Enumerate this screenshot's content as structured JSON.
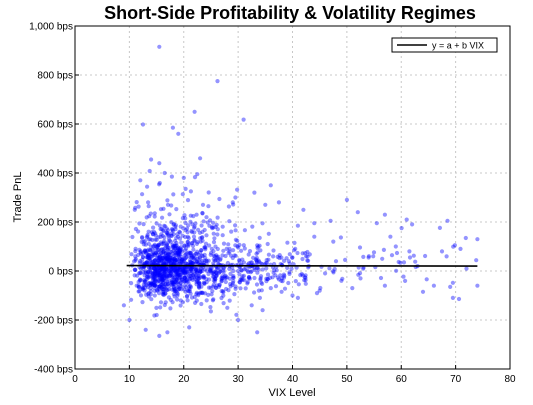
{
  "chart_data": {
    "type": "scatter",
    "title": "Short-Side Profitability & Volatility Regimes",
    "xlabel": "VIX Level",
    "ylabel": "Trade PnL",
    "xlim": [
      0,
      80
    ],
    "ylim": [
      -400,
      1000
    ],
    "x_ticks": [
      0,
      10,
      20,
      30,
      40,
      50,
      60,
      70,
      80
    ],
    "y_ticks": [
      -400,
      -200,
      0,
      200,
      400,
      600,
      800,
      1000
    ],
    "y_tick_labels": [
      "-400 bps",
      "-200 bps",
      "0 bps",
      "200 bps",
      "400 bps",
      "600 bps",
      "800 bps",
      "1,000 bps"
    ],
    "grid": true,
    "legend_position": "top-right",
    "series": [
      {
        "name": "y = a + b VIX",
        "kind": "fit-line",
        "color": "#000000",
        "x": [
          9.5,
          74
        ],
        "y": [
          22,
          20
        ]
      },
      {
        "kind": "scatter",
        "color": "#0000ff",
        "note_count": 1400,
        "points": [
          [
            15.5,
            915
          ],
          [
            26.2,
            775
          ],
          [
            22,
            650
          ],
          [
            31,
            618
          ],
          [
            12.5,
            598
          ],
          [
            18,
            585
          ],
          [
            19,
            560
          ],
          [
            14,
            455
          ],
          [
            15.5,
            440
          ],
          [
            23,
            460
          ],
          [
            16.5,
            400
          ],
          [
            22.5,
            395
          ],
          [
            20,
            380
          ],
          [
            36,
            350
          ],
          [
            12,
            370
          ],
          [
            11,
            250
          ],
          [
            29.5,
            300
          ],
          [
            33,
            320
          ],
          [
            37.5,
            280
          ],
          [
            35,
            270
          ],
          [
            42,
            250
          ],
          [
            50,
            290
          ],
          [
            52,
            240
          ],
          [
            57,
            230
          ],
          [
            61,
            210
          ],
          [
            44,
            195
          ],
          [
            47,
            205
          ],
          [
            55.5,
            195
          ],
          [
            41,
            185
          ],
          [
            62,
            190
          ],
          [
            68.5,
            205
          ],
          [
            74,
            130
          ],
          [
            59,
            100
          ],
          [
            61.5,
            80
          ],
          [
            67.5,
            80
          ],
          [
            72,
            10
          ],
          [
            69,
            -65
          ],
          [
            66,
            -60
          ],
          [
            64,
            -85
          ],
          [
            69.5,
            -110
          ],
          [
            74,
            -60
          ],
          [
            57,
            -60
          ],
          [
            51,
            -70
          ],
          [
            49,
            -40
          ],
          [
            45,
            -80
          ],
          [
            44.5,
            -90
          ],
          [
            40,
            -100
          ],
          [
            41,
            -110
          ],
          [
            38,
            -85
          ],
          [
            36,
            -70
          ],
          [
            34,
            -110
          ],
          [
            32.5,
            -140
          ],
          [
            34.5,
            -160
          ],
          [
            33.5,
            -250
          ],
          [
            30,
            -200
          ],
          [
            28,
            -150
          ],
          [
            25,
            -165
          ],
          [
            21,
            -230
          ],
          [
            13,
            -240
          ],
          [
            15.5,
            -265
          ],
          [
            17,
            -250
          ],
          [
            10,
            -200
          ],
          [
            9,
            -140
          ],
          [
            48,
            40
          ],
          [
            53,
            10
          ],
          [
            56.5,
            50
          ],
          [
            60.5,
            35
          ],
          [
            46,
            -10
          ],
          [
            43,
            20
          ],
          [
            39.5,
            30
          ],
          [
            38.5,
            -20
          ],
          [
            42.5,
            60
          ],
          [
            40.5,
            90
          ],
          [
            47.5,
            120
          ],
          [
            44,
            140
          ],
          [
            58,
            140
          ],
          [
            54,
            55
          ],
          [
            63,
            20
          ],
          [
            52.5,
            -30
          ]
        ]
      }
    ]
  }
}
